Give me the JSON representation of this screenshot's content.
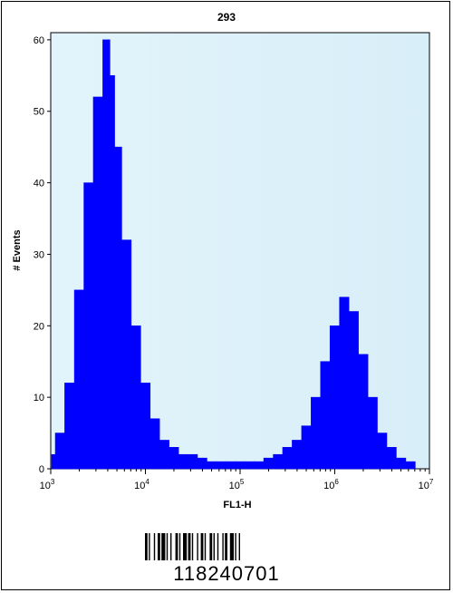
{
  "chart_data": {
    "type": "histogram",
    "title": "293",
    "xlabel": "FL1-H",
    "ylabel": "# Events",
    "x_scale": "log",
    "xlim": [
      1000,
      10000000
    ],
    "ylim": [
      0,
      61
    ],
    "x_ticks": [
      {
        "value": 1000,
        "base": "10",
        "exp": "3"
      },
      {
        "value": 10000,
        "base": "10",
        "exp": "4"
      },
      {
        "value": 100000,
        "base": "10",
        "exp": "5"
      },
      {
        "value": 1000000,
        "base": "10",
        "exp": "6"
      },
      {
        "value": 10000000,
        "base": "10",
        "exp": "7"
      }
    ],
    "y_ticks": [
      0,
      10,
      20,
      30,
      40,
      50,
      60
    ],
    "grid": false,
    "colors": {
      "fill": "#0000ff",
      "plot_background": "#e8f6fc"
    },
    "series": [
      {
        "x": [
          1000,
          1250,
          1580,
          2000,
          2510,
          3160,
          3980,
          4470,
          5010,
          6310,
          7940,
          10000,
          12600,
          15800,
          20000,
          25100,
          31600,
          39800,
          50100,
          63100,
          79400,
          100000,
          126000,
          158000,
          200000,
          251000,
          316000,
          398000,
          501000,
          631000,
          794000,
          1000000,
          1260000,
          1580000,
          2000000,
          2510000,
          3160000,
          3980000,
          5010000,
          6310000,
          7940000
        ],
        "y": [
          2,
          5,
          12,
          25,
          40,
          52,
          60,
          55,
          45,
          32,
          20,
          12,
          7,
          4,
          3,
          2,
          2,
          1.5,
          1,
          1,
          1,
          1,
          1,
          1,
          1.5,
          2,
          3,
          4,
          6,
          10,
          15,
          20,
          24,
          22,
          16,
          10,
          5,
          3,
          1.5,
          1,
          0
        ]
      }
    ]
  },
  "barcode": {
    "number": "118240701"
  }
}
